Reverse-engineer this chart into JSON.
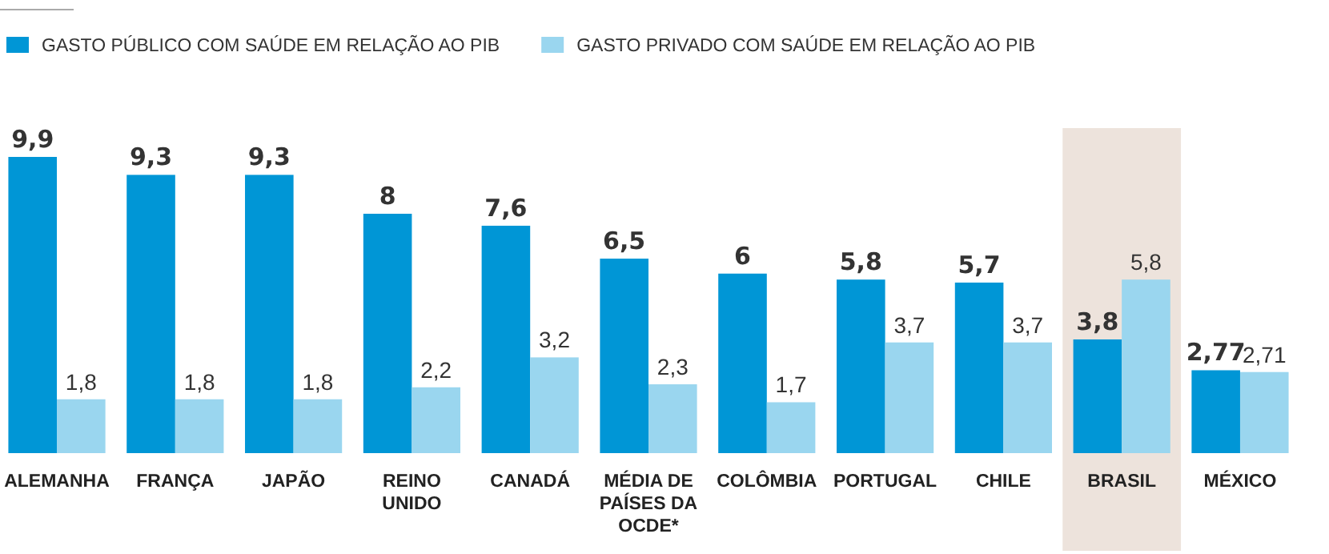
{
  "chart_data": {
    "type": "bar",
    "categories": [
      "ALEMANHA",
      "FRANÇA",
      "JAPÃO",
      "REINO UNIDO",
      "CANADÁ",
      "MÉDIA DE PAÍSES DA OCDE*",
      "COLÔMBIA",
      "PORTUGAL",
      "CHILE",
      "BRASIL",
      "MÉXICO"
    ],
    "series": [
      {
        "name": "GASTO PÚBLICO COM SAÚDE EM RELAÇÃO AO PIB",
        "color": "#0096d6",
        "values": [
          9.9,
          9.3,
          9.3,
          8,
          7.6,
          6.5,
          6,
          5.8,
          5.7,
          3.8,
          2.77
        ],
        "value_labels": [
          "9,9",
          "9,3",
          "9,3",
          "8",
          "7,6",
          "6,5",
          "6",
          "5,8",
          "5,7",
          "3,8",
          "2,77"
        ]
      },
      {
        "name": "GASTO PRIVADO COM SAÚDE EM RELAÇÃO AO PIB",
        "color": "#9ad6ef",
        "values": [
          1.8,
          1.8,
          1.8,
          2.2,
          3.2,
          2.3,
          1.7,
          3.7,
          3.7,
          5.8,
          2.71
        ],
        "value_labels": [
          "1,8",
          "1,8",
          "1,8",
          "2,2",
          "3,2",
          "2,3",
          "1,7",
          "3,7",
          "3,7",
          "5,8",
          "2,71"
        ]
      }
    ],
    "bands": [
      {
        "axis": "x",
        "from": "BRASIL",
        "to": "BRASIL",
        "color": "#ede3dc"
      }
    ],
    "legend": "top left"
  }
}
